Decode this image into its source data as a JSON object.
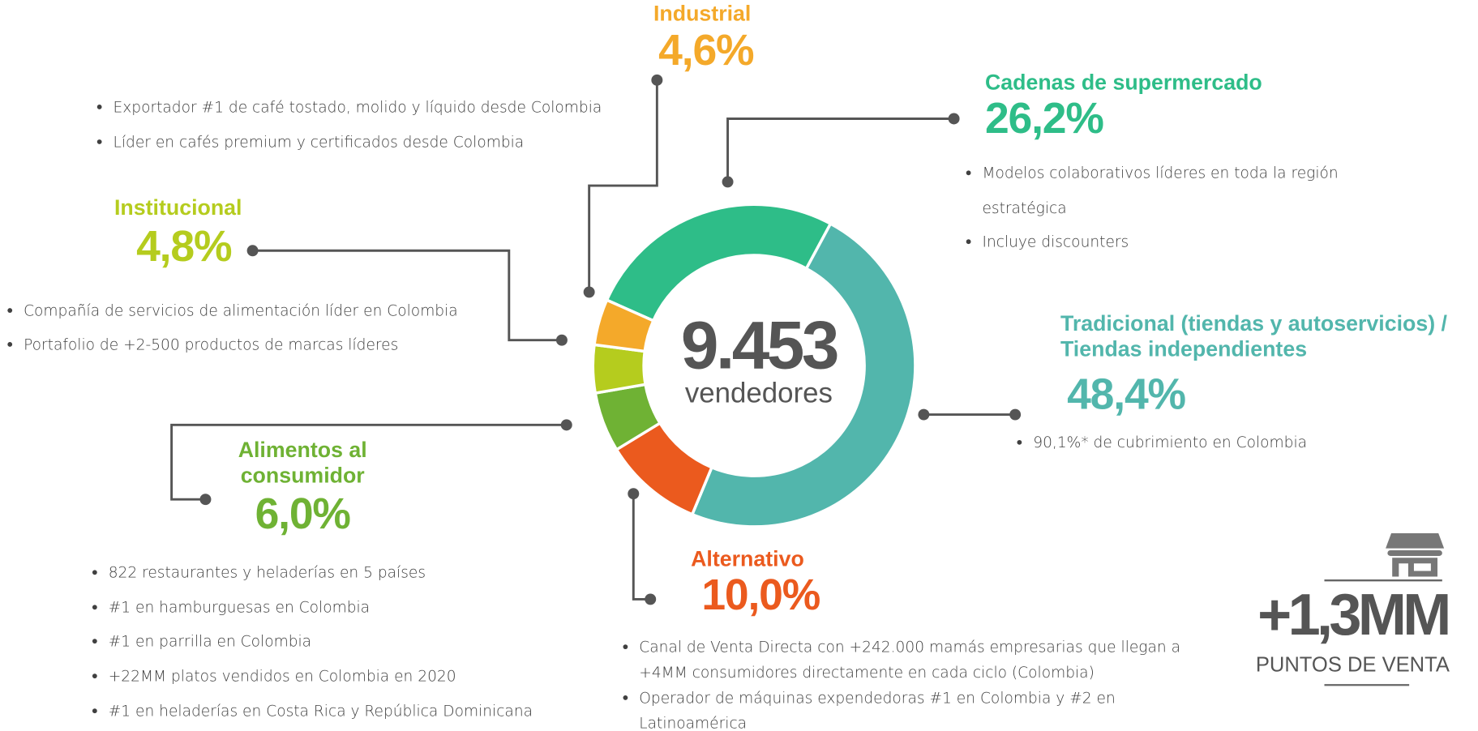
{
  "chart_data": {
    "type": "pie",
    "donut": true,
    "center_label": "9.453",
    "center_sublabel": "vendedores",
    "categories": [
      "Cadenas de supermercado",
      "Tradicional (tiendas y autoservicios) / Tiendas independientes",
      "Alternativo",
      "Alimentos al consumidor",
      "Institucional",
      "Industrial"
    ],
    "values": [
      26.2,
      48.4,
      10.0,
      6.0,
      4.8,
      4.6
    ],
    "value_labels": [
      "26,2%",
      "48,4%",
      "10,0%",
      "6,0%",
      "4,8%",
      "4,6%"
    ],
    "colors": [
      "#2ebd88",
      "#52b6ac",
      "#eb5a1e",
      "#6fb234",
      "#b5cc1e",
      "#f4a92a"
    ],
    "notes": [
      [
        "Modelos colaborativos líderes en toda la región estratégica",
        "Incluye discounters"
      ],
      [
        "90,1%* de cubrimiento en Colombia"
      ],
      [
        "Canal de Venta Directa con +242.000 mamás empresarias que llegan a +4MM consumidores directamente en cada ciclo (Colombia)",
        "Operador de máquinas expendedoras #1 en Colombia y #2 en Latinoamérica"
      ],
      [
        "822 restaurantes y heladerías en 5 países",
        "#1 en hamburguesas en Colombia",
        "#1 en parrilla en Colombia",
        "+22MM platos vendidos en Colombia en 2020",
        "#1 en heladerías en Costa Rica y República Dominicana"
      ],
      [
        "Compañía de servicios de alimentación líder en Colombia",
        "Portafolio de +2-500 productos de marcas líderes"
      ],
      [
        "Exportador #1 de café tostado, molido y líquido desde Colombia",
        "Líder en cafés premium y certificados desde Colombia"
      ]
    ],
    "footer_value": "+1,3MM",
    "footer_label": "PUNTOS DE VENTA"
  }
}
